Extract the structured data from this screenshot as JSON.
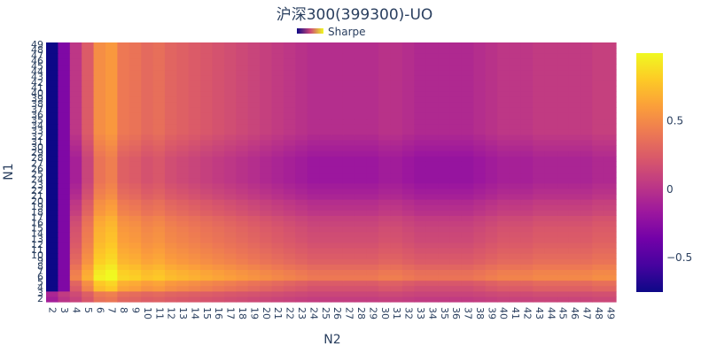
{
  "chart_data": {
    "type": "heatmap",
    "title": "沪深300(399300)-UO",
    "xlabel": "N2",
    "ylabel": "N1",
    "legend": [
      {
        "name": "Sharpe"
      }
    ],
    "x_range": [
      2,
      49
    ],
    "y_range": [
      2,
      49
    ],
    "colorbar": {
      "zmin": -0.75,
      "zmax": 1.0,
      "ticks": [
        {
          "value": 0.5,
          "label": "0.5"
        },
        {
          "value": 0,
          "label": "0"
        },
        {
          "value": -0.5,
          "label": "−0.5"
        }
      ],
      "colors": [
        "#0d0887",
        "#46039f",
        "#7201a8",
        "#9c179e",
        "#bd3786",
        "#d8576b",
        "#ed7953",
        "#fb9f3a",
        "#fdca26",
        "#f0f921"
      ]
    },
    "row_profile": {
      "y": [
        2,
        3,
        4,
        5,
        6,
        7,
        8,
        9,
        10,
        11,
        12,
        13,
        14,
        15,
        16,
        17,
        18,
        19,
        20,
        21,
        22,
        23,
        24,
        25,
        26,
        27,
        28,
        29,
        30,
        31,
        32,
        33,
        34,
        35,
        36,
        37,
        38,
        39,
        40,
        41,
        42,
        43,
        44,
        45,
        46,
        47,
        48,
        49
      ],
      "sharpe": [
        0.2,
        0.3,
        0.45,
        0.55,
        0.85,
        0.8,
        0.7,
        0.6,
        0.55,
        0.5,
        0.45,
        0.4,
        0.38,
        0.35,
        0.3,
        0.25,
        0.15,
        0.1,
        0.05,
        -0.05,
        -0.1,
        -0.15,
        -0.2,
        -0.2,
        -0.2,
        -0.2,
        -0.2,
        -0.15,
        -0.1,
        -0.05,
        0,
        0.05,
        0.05,
        0.05,
        0.05,
        0.05,
        0.05,
        0.05,
        0.05,
        0.05,
        0.05,
        0.05,
        0.05,
        0.05,
        0.05,
        0.05,
        0.05,
        0.05
      ]
    },
    "col_profile": {
      "x": [
        2,
        3,
        4,
        5,
        6,
        7,
        8,
        9,
        10,
        11,
        12,
        13,
        14,
        15,
        16,
        17,
        18,
        19,
        20,
        21,
        22,
        23,
        24,
        25,
        26,
        27,
        28,
        29,
        30,
        31,
        32,
        33,
        34,
        35,
        36,
        37,
        38,
        39,
        40,
        41,
        42,
        43,
        44,
        45,
        46,
        47,
        48,
        49
      ],
      "sharpe": [
        -0.75,
        -0.3,
        0.0,
        0.4,
        0.9,
        1.0,
        0.7,
        0.65,
        0.55,
        0.6,
        0.5,
        0.45,
        0.4,
        0.35,
        0.3,
        0.25,
        0.2,
        0.15,
        0.1,
        0.05,
        0.0,
        -0.05,
        -0.1,
        -0.1,
        -0.1,
        -0.1,
        -0.1,
        -0.1,
        -0.05,
        -0.05,
        -0.1,
        -0.15,
        -0.15,
        -0.15,
        -0.15,
        -0.15,
        -0.1,
        -0.05,
        0.0,
        0.0,
        0.0,
        0.05,
        0.05,
        0.05,
        0.05,
        0.05,
        0.1,
        0.1
      ]
    },
    "grid": false,
    "legend_placement": "top-center"
  }
}
